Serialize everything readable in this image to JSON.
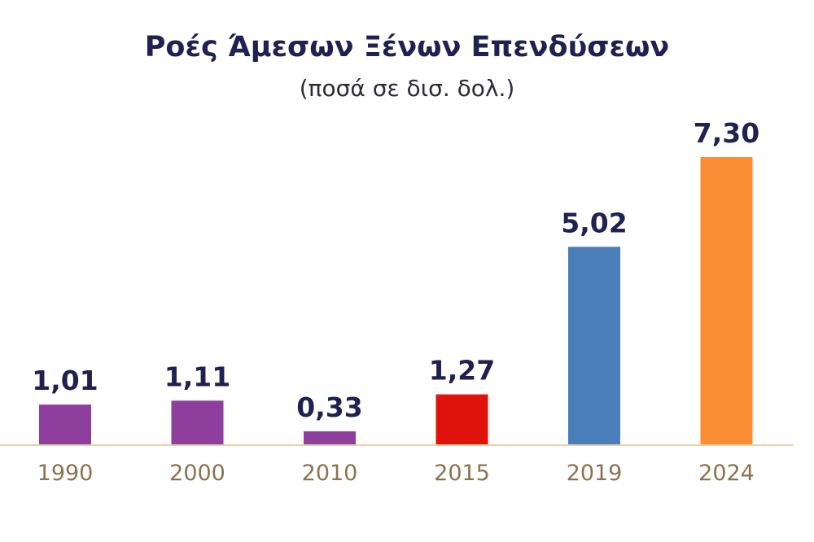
{
  "chart_data": {
    "type": "bar",
    "title": "Ροές Άμεσων Ξένων Επενδύσεων",
    "subtitle": "(ποσά σε δισ. δολ.)",
    "xlabel": "",
    "ylabel": "",
    "categories": [
      "1990",
      "2000",
      "2010",
      "2015",
      "2019",
      "2024"
    ],
    "values": [
      1.01,
      1.11,
      0.33,
      1.27,
      5.02,
      7.3
    ],
    "value_labels": [
      "1,01",
      "1,11",
      "0,33",
      "1,27",
      "5,02",
      "7,30"
    ],
    "bar_colors": [
      "#8e3f9e",
      "#8e3f9e",
      "#8e3f9e",
      "#e0120c",
      "#4a7fba",
      "#fb8d35"
    ],
    "ylim": [
      0,
      7.3
    ],
    "grid": false,
    "legend": "none",
    "axis_color": "#e9cfa8"
  }
}
